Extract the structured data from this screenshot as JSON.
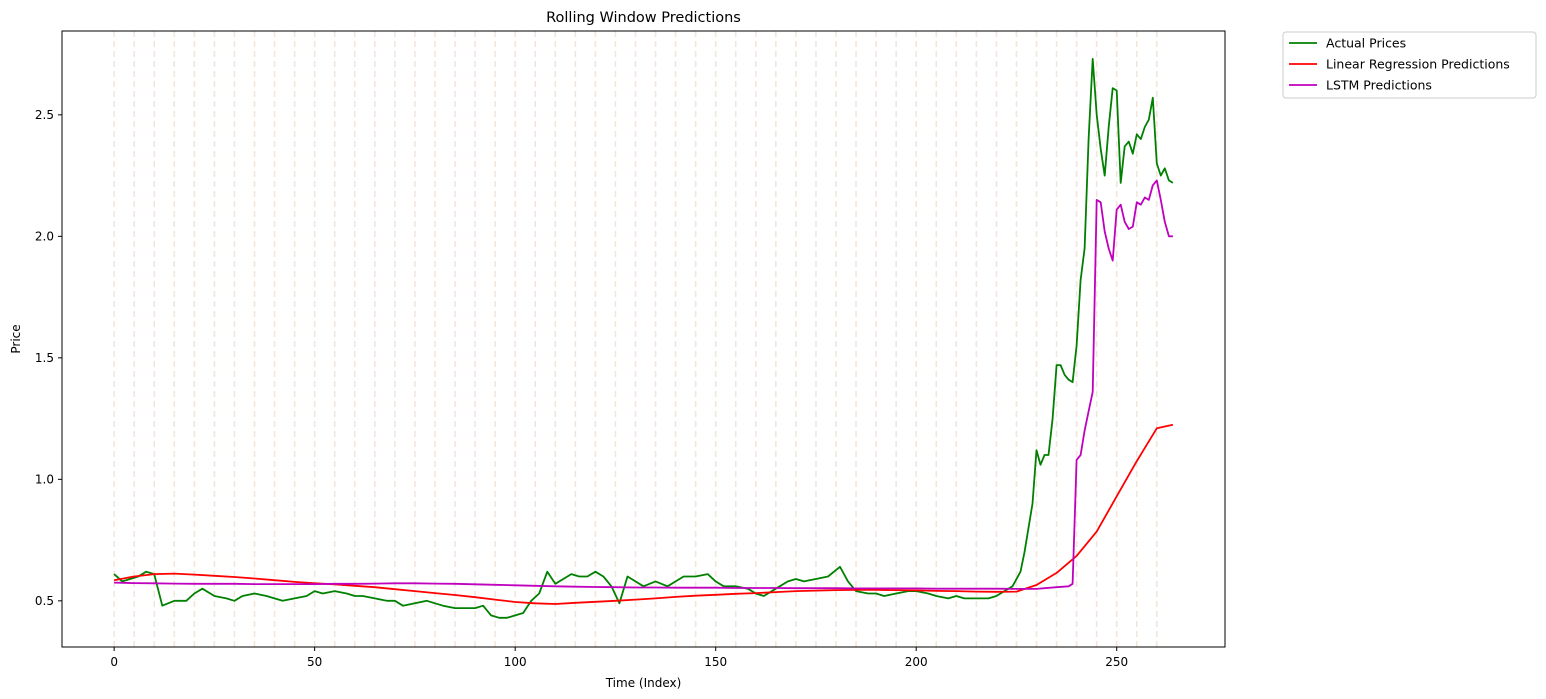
{
  "chart_data": {
    "type": "line",
    "title": "Rolling Window Predictions",
    "xlabel": "Time (Index)",
    "ylabel": "Price",
    "xlim": [
      -13,
      277
    ],
    "ylim": [
      0.31,
      2.845
    ],
    "xticks": [
      0,
      50,
      100,
      150,
      200,
      250
    ],
    "yticks": [
      0.5,
      1.0,
      1.5,
      2.0,
      2.5
    ],
    "xtick_labels": [
      "0",
      "50",
      "100",
      "150",
      "200",
      "250"
    ],
    "ytick_labels": [
      "0.5",
      "1.0",
      "1.5",
      "2.0",
      "2.5"
    ],
    "window_lines_every": 5,
    "window_lines_range": [
      0,
      260
    ],
    "window_line_color": "#f2e6dc",
    "legend_position": "outside-top-right",
    "legend": [
      "Actual Prices",
      "Linear Regression Predictions",
      "LSTM Predictions"
    ],
    "series": [
      {
        "name": "Actual Prices",
        "color": "#008000",
        "x": [
          0,
          2,
          4,
          6,
          8,
          10,
          12,
          15,
          18,
          20,
          22,
          25,
          28,
          30,
          32,
          35,
          38,
          40,
          42,
          45,
          48,
          50,
          52,
          55,
          58,
          60,
          62,
          65,
          68,
          70,
          72,
          75,
          78,
          80,
          82,
          85,
          88,
          90,
          92,
          94,
          96,
          98,
          100,
          102,
          104,
          106,
          108,
          110,
          112,
          114,
          116,
          118,
          120,
          122,
          124,
          126,
          128,
          130,
          132,
          135,
          138,
          140,
          142,
          145,
          148,
          150,
          152,
          155,
          158,
          160,
          162,
          165,
          168,
          170,
          172,
          175,
          178,
          181,
          183,
          185,
          188,
          190,
          192,
          195,
          198,
          200,
          203,
          205,
          208,
          210,
          212,
          215,
          218,
          220,
          222,
          224,
          226,
          227,
          229,
          230,
          231,
          232,
          233,
          234,
          235,
          236,
          237,
          238,
          239,
          240,
          241,
          242,
          243,
          244,
          245,
          246,
          247,
          248,
          249,
          250,
          251,
          252,
          253,
          254,
          255,
          256,
          257,
          258,
          259,
          260,
          261,
          262,
          263,
          264
        ],
        "values": [
          0.61,
          0.58,
          0.59,
          0.6,
          0.62,
          0.61,
          0.48,
          0.5,
          0.5,
          0.53,
          0.55,
          0.52,
          0.51,
          0.5,
          0.52,
          0.53,
          0.52,
          0.51,
          0.5,
          0.51,
          0.52,
          0.54,
          0.53,
          0.54,
          0.53,
          0.52,
          0.52,
          0.51,
          0.5,
          0.5,
          0.48,
          0.49,
          0.5,
          0.49,
          0.48,
          0.47,
          0.47,
          0.47,
          0.48,
          0.44,
          0.43,
          0.43,
          0.44,
          0.45,
          0.5,
          0.53,
          0.62,
          0.57,
          0.59,
          0.61,
          0.6,
          0.6,
          0.62,
          0.6,
          0.56,
          0.49,
          0.6,
          0.58,
          0.56,
          0.58,
          0.56,
          0.58,
          0.6,
          0.6,
          0.61,
          0.58,
          0.56,
          0.56,
          0.55,
          0.53,
          0.52,
          0.55,
          0.58,
          0.59,
          0.58,
          0.59,
          0.6,
          0.64,
          0.58,
          0.54,
          0.53,
          0.53,
          0.52,
          0.53,
          0.54,
          0.54,
          0.53,
          0.52,
          0.51,
          0.52,
          0.51,
          0.51,
          0.51,
          0.52,
          0.54,
          0.56,
          0.62,
          0.7,
          0.9,
          1.12,
          1.06,
          1.1,
          1.1,
          1.25,
          1.47,
          1.47,
          1.43,
          1.41,
          1.4,
          1.55,
          1.82,
          1.95,
          2.4,
          2.73,
          2.5,
          2.36,
          2.25,
          2.45,
          2.61,
          2.6,
          2.22,
          2.37,
          2.39,
          2.34,
          2.42,
          2.4,
          2.45,
          2.48,
          2.57,
          2.3,
          2.25,
          2.28,
          2.23,
          2.22
        ]
      },
      {
        "name": "Linear Regression Predictions",
        "color": "#ff0000",
        "x": [
          0,
          5,
          10,
          15,
          20,
          25,
          30,
          35,
          40,
          45,
          50,
          55,
          60,
          65,
          70,
          75,
          80,
          85,
          90,
          95,
          100,
          105,
          110,
          115,
          120,
          125,
          130,
          135,
          140,
          145,
          150,
          155,
          160,
          165,
          170,
          175,
          180,
          185,
          190,
          195,
          200,
          205,
          210,
          215,
          220,
          225,
          230,
          235,
          240,
          245,
          250,
          255,
          260,
          264
        ],
        "values": [
          0.585,
          0.6,
          0.61,
          0.612,
          0.608,
          0.603,
          0.598,
          0.592,
          0.585,
          0.578,
          0.572,
          0.568,
          0.562,
          0.556,
          0.548,
          0.54,
          0.532,
          0.524,
          0.515,
          0.505,
          0.495,
          0.49,
          0.487,
          0.492,
          0.496,
          0.5,
          0.505,
          0.51,
          0.516,
          0.521,
          0.525,
          0.529,
          0.532,
          0.536,
          0.54,
          0.542,
          0.544,
          0.545,
          0.545,
          0.544,
          0.543,
          0.541,
          0.54,
          0.538,
          0.537,
          0.538,
          0.565,
          0.615,
          0.685,
          0.785,
          0.93,
          1.075,
          1.21,
          1.225
        ]
      },
      {
        "name": "LSTM Predictions",
        "color": "#bf00bf",
        "x": [
          0,
          5,
          10,
          15,
          20,
          25,
          30,
          35,
          40,
          45,
          50,
          55,
          60,
          65,
          70,
          75,
          80,
          85,
          90,
          95,
          100,
          105,
          110,
          115,
          120,
          125,
          130,
          135,
          140,
          145,
          150,
          155,
          160,
          165,
          170,
          175,
          180,
          185,
          190,
          195,
          200,
          205,
          210,
          215,
          220,
          225,
          230,
          235,
          238,
          239,
          240,
          241,
          242,
          243,
          244,
          245,
          246,
          247,
          248,
          249,
          250,
          251,
          252,
          253,
          254,
          255,
          256,
          257,
          258,
          259,
          260,
          261,
          262,
          263,
          264
        ],
        "values": [
          0.575,
          0.573,
          0.572,
          0.571,
          0.57,
          0.57,
          0.57,
          0.569,
          0.569,
          0.569,
          0.569,
          0.57,
          0.57,
          0.571,
          0.572,
          0.572,
          0.571,
          0.57,
          0.568,
          0.566,
          0.564,
          0.562,
          0.56,
          0.558,
          0.557,
          0.556,
          0.555,
          0.555,
          0.554,
          0.554,
          0.554,
          0.553,
          0.553,
          0.553,
          0.552,
          0.552,
          0.552,
          0.551,
          0.551,
          0.551,
          0.551,
          0.55,
          0.55,
          0.55,
          0.55,
          0.549,
          0.549,
          0.556,
          0.56,
          0.57,
          1.08,
          1.1,
          1.2,
          1.28,
          1.36,
          2.15,
          2.14,
          2.02,
          1.95,
          1.9,
          2.11,
          2.13,
          2.06,
          2.03,
          2.04,
          2.14,
          2.13,
          2.16,
          2.15,
          2.21,
          2.23,
          2.15,
          2.06,
          2.0,
          2.0
        ]
      }
    ]
  }
}
